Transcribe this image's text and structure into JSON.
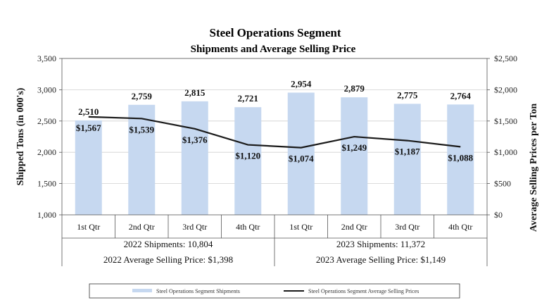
{
  "chart_data": {
    "type": "bar",
    "title": "Steel Operations Segment",
    "subtitle": "Shipments and Average Selling Price",
    "categories": [
      "1st Qtr",
      "2nd Qtr",
      "3rd Qtr",
      "4th Qtr",
      "1st Qtr",
      "2nd Qtr",
      "3rd Qtr",
      "4th Qtr"
    ],
    "series": [
      {
        "name": "Steel Operations Segment Shipments",
        "type": "bar",
        "axis": "left",
        "color": "#c6d8f0",
        "values": [
          2510,
          2759,
          2815,
          2721,
          2954,
          2879,
          2775,
          2764
        ],
        "labels": [
          "2,510",
          "2,759",
          "2,815",
          "2,721",
          "2,954",
          "2,879",
          "2,775",
          "2,764"
        ]
      },
      {
        "name": "Steel Operations Segment Average Selling Prices",
        "type": "line",
        "axis": "right",
        "color": "#1a1a1a",
        "values": [
          1567,
          1539,
          1376,
          1120,
          1074,
          1249,
          1187,
          1088
        ],
        "labels": [
          "$1,567",
          "$1,539",
          "$1,376",
          "$1,120",
          "$1,074",
          "$1,249",
          "$1,187",
          "$1,088"
        ]
      }
    ],
    "ylabel": "Shipped Tons (in 000's)",
    "y2label": "Average Selling Prices per Ton",
    "ylim": [
      1000,
      3500
    ],
    "y2lim": [
      0,
      2500
    ],
    "yticks": [
      "1,000",
      "1,500",
      "2,000",
      "2,500",
      "3,000",
      "3,500"
    ],
    "y2ticks": [
      "$0",
      "$500",
      "$1,000",
      "$1,500",
      "$2,000",
      "$2,500"
    ],
    "groups": [
      {
        "shipments": "2022 Shipments: 10,804",
        "price": "2022 Average Selling Price: $1,398"
      },
      {
        "shipments": "2023 Shipments: 11,372",
        "price": "2023 Average Selling Price: $1,149"
      }
    ],
    "legend": [
      "Steel Operations Segment Shipments",
      "Steel Operations Segment Average Selling Prices"
    ],
    "legend_position": "bottom"
  }
}
